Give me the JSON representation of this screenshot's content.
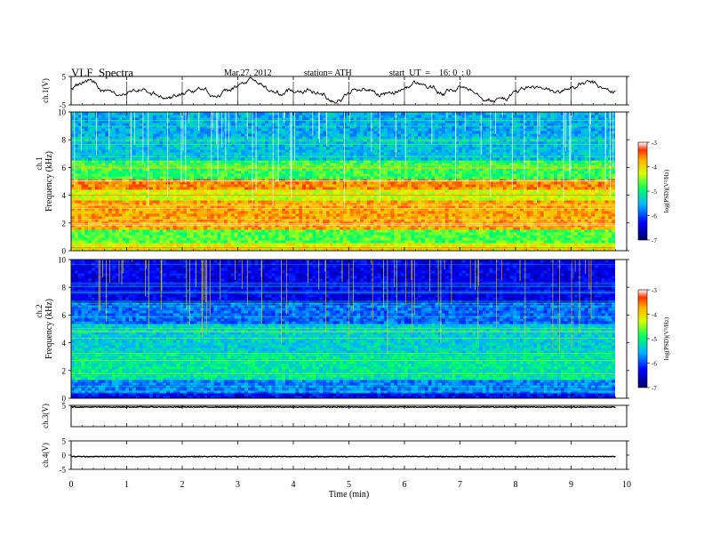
{
  "header": {
    "title": "VLF  Spectra",
    "date": "Mar.27, 2012",
    "station": "station= ATH",
    "start": "start  UT  =    16: 0  : 0"
  },
  "chart_data": [
    {
      "type": "line",
      "name": "ch1-waveform",
      "ylabel": "ch.1(V)",
      "yticks": [
        "5",
        "-5"
      ],
      "ylim": [
        -5,
        5
      ],
      "xlim": [
        0,
        9.8
      ],
      "note_values": "irregular slow wander mostly between about 3 and -3 V"
    },
    {
      "type": "heatmap",
      "name": "ch1-spectrogram",
      "ylabel_top": "ch.1",
      "ylabel": "Frequency  (kHz)",
      "yticks": [
        "0",
        "2",
        "4",
        "6",
        "8",
        "10"
      ],
      "ylim": [
        0,
        10
      ],
      "xlim": [
        0,
        9.8
      ],
      "colorbar": {
        "label": "log(PSD)(V²/Hz)",
        "ticks": [
          "-3",
          "-4",
          "-5",
          "-6",
          "-7"
        ],
        "range": [
          -7,
          -3
        ]
      },
      "bands": [
        {
          "f0": 0.0,
          "f1": 0.6,
          "level": -4.3
        },
        {
          "f0": 0.6,
          "f1": 1.6,
          "level": -4.8
        },
        {
          "f0": 1.6,
          "f1": 3.6,
          "level": -3.9
        },
        {
          "f0": 3.6,
          "f1": 4.4,
          "level": -4.4
        },
        {
          "f0": 4.4,
          "f1": 5.2,
          "level": -3.8
        },
        {
          "f0": 5.2,
          "f1": 6.6,
          "level": -4.9
        },
        {
          "f0": 6.6,
          "f1": 8.2,
          "level": -5.5
        },
        {
          "f0": 8.2,
          "f1": 10.0,
          "level": -5.6
        }
      ]
    },
    {
      "type": "heatmap",
      "name": "ch2-spectrogram",
      "ylabel_top": "ch.2",
      "ylabel": "Frequency  (kHz)",
      "yticks": [
        "0",
        "2",
        "4",
        "6",
        "8",
        "10"
      ],
      "ylim": [
        0,
        10
      ],
      "xlim": [
        0,
        9.8
      ],
      "colorbar": {
        "label": "log(PSD)(V²/Hz)",
        "ticks": [
          "-3",
          "-4",
          "-5",
          "-6",
          "-7"
        ],
        "range": [
          -7,
          -3
        ]
      },
      "bands": [
        {
          "f0": 0.0,
          "f1": 0.4,
          "level": -6.3
        },
        {
          "f0": 0.4,
          "f1": 1.4,
          "level": -5.8
        },
        {
          "f0": 1.4,
          "f1": 3.2,
          "level": -5.2
        },
        {
          "f0": 3.2,
          "f1": 5.4,
          "level": -5.4
        },
        {
          "f0": 5.4,
          "f1": 7.0,
          "level": -5.9
        },
        {
          "f0": 7.0,
          "f1": 10.0,
          "level": -6.4
        }
      ]
    },
    {
      "type": "line",
      "name": "ch3-waveform",
      "ylabel": "ch.3(V)",
      "yticks": [
        "5"
      ],
      "ylim": [
        -5,
        5
      ],
      "xlim": [
        0,
        9.8
      ],
      "note_values": "flat trace near upper limit"
    },
    {
      "type": "line",
      "name": "ch4-waveform",
      "ylabel": "ch.4(V)",
      "yticks": [
        "5",
        "0",
        "-5"
      ],
      "ylim": [
        -5,
        5
      ],
      "xlim": [
        0,
        9.8
      ],
      "note_values": "flat trace at about -0.5 V"
    }
  ],
  "xaxis": {
    "label": "Time  (min)",
    "ticks": [
      "0",
      "1",
      "2",
      "3",
      "4",
      "5",
      "6",
      "7",
      "8",
      "9",
      "10"
    ],
    "range": [
      0,
      10
    ]
  }
}
